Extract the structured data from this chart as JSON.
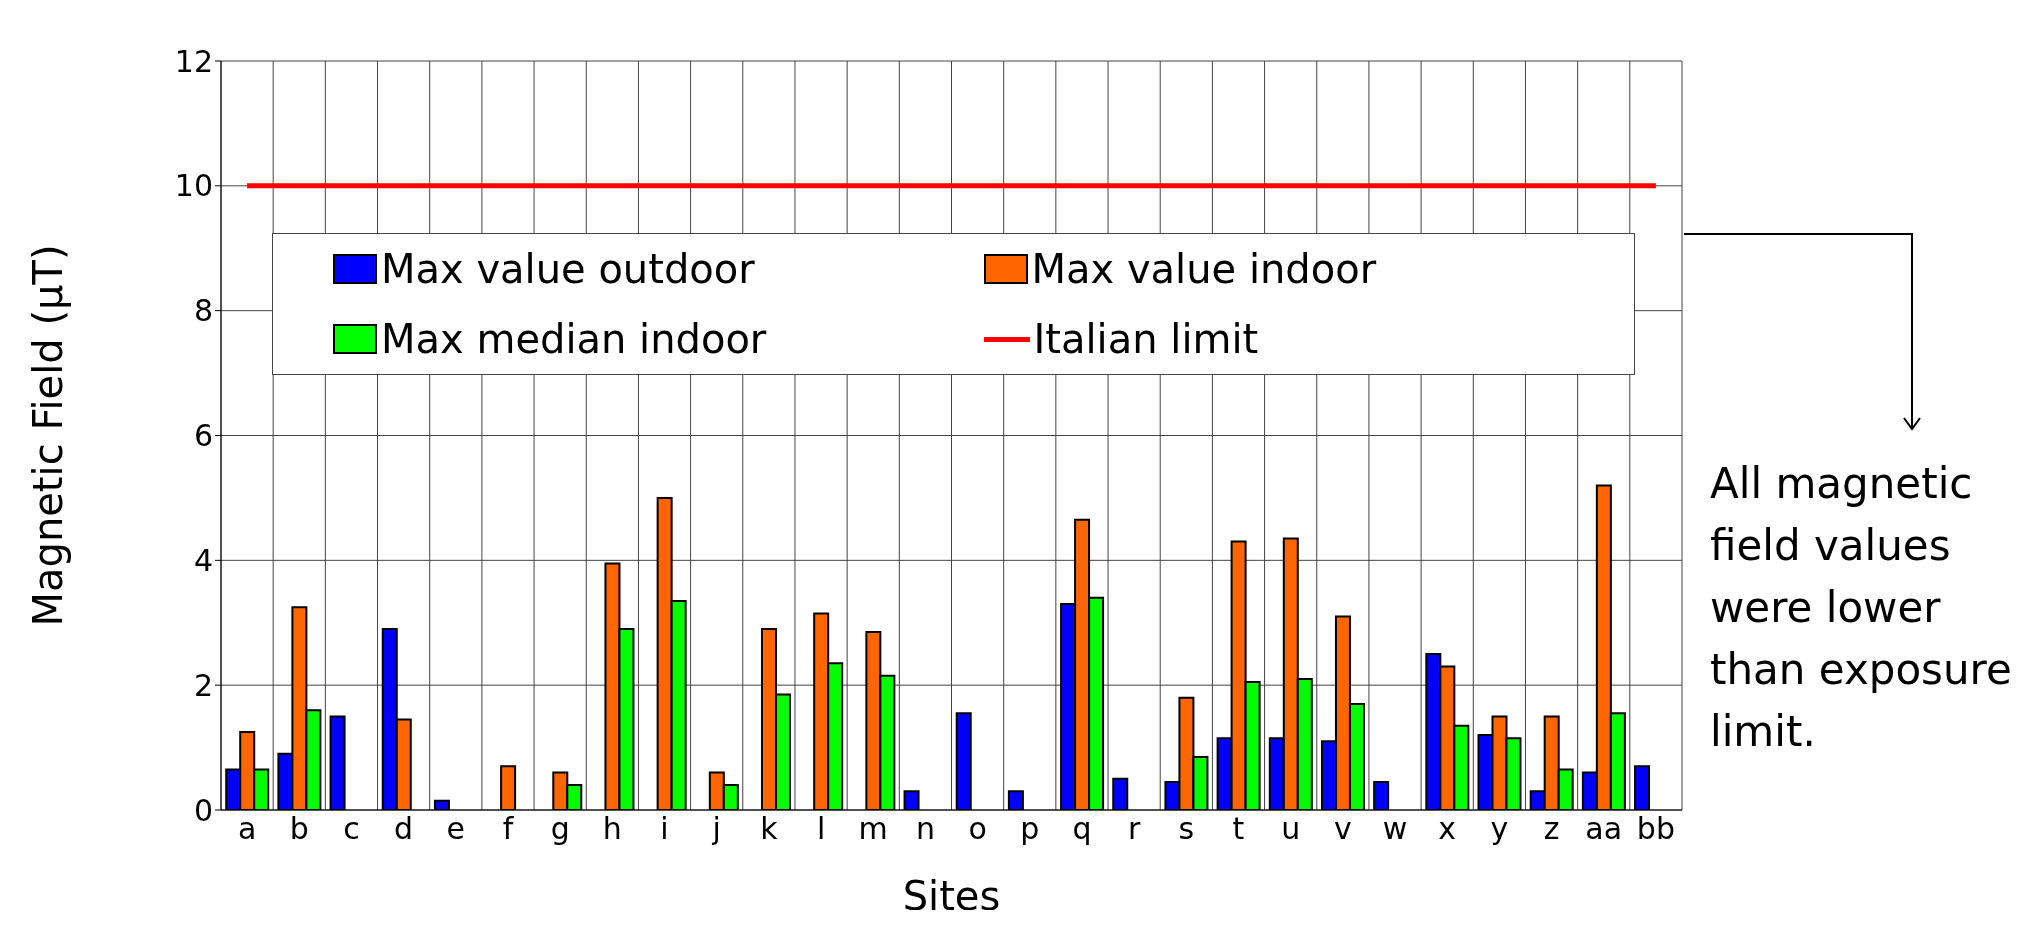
{
  "chart_data": {
    "type": "bar",
    "xlabel": "Sites",
    "ylabel": "Magnetic Field (µT)",
    "categories": [
      "a",
      "b",
      "c",
      "d",
      "e",
      "f",
      "g",
      "h",
      "i",
      "j",
      "k",
      "l",
      "m",
      "n",
      "o",
      "p",
      "q",
      "r",
      "s",
      "t",
      "u",
      "v",
      "w",
      "x",
      "y",
      "z",
      "aa",
      "bb"
    ],
    "series": [
      {
        "name": "Max value outdoor",
        "color": "#0000ff",
        "values": [
          0.65,
          0.9,
          1.5,
          2.9,
          0.15,
          null,
          null,
          null,
          null,
          null,
          null,
          null,
          null,
          0.3,
          1.55,
          0.3,
          3.3,
          0.5,
          0.45,
          1.15,
          1.15,
          1.1,
          0.45,
          2.5,
          1.2,
          0.3,
          0.6,
          0.7
        ]
      },
      {
        "name": "Max value indoor",
        "color": "#ff6600",
        "values": [
          1.25,
          3.25,
          null,
          1.45,
          null,
          0.7,
          0.6,
          3.95,
          5.0,
          0.6,
          2.9,
          3.15,
          2.85,
          null,
          null,
          null,
          4.65,
          null,
          1.8,
          4.3,
          4.35,
          3.1,
          null,
          2.3,
          1.5,
          1.5,
          5.2,
          null
        ]
      },
      {
        "name": "Max median indoor",
        "color": "#00ff00",
        "values": [
          0.65,
          1.6,
          null,
          null,
          null,
          null,
          0.4,
          2.9,
          3.35,
          0.4,
          1.85,
          2.35,
          2.15,
          null,
          null,
          null,
          3.4,
          null,
          0.85,
          2.05,
          2.1,
          1.7,
          null,
          1.35,
          1.15,
          0.65,
          1.55,
          null
        ]
      },
      {
        "name": "Italian limit",
        "type": "line",
        "color": "#ff0000",
        "values": [
          10,
          10,
          10,
          10,
          10,
          10,
          10,
          10,
          10,
          10,
          10,
          10,
          10,
          10,
          10,
          10,
          10,
          10,
          10,
          10,
          10,
          10,
          10,
          10,
          10,
          10,
          10,
          10
        ]
      }
    ],
    "ylim": [
      0,
      12
    ],
    "yticks": [
      0,
      2,
      4,
      6,
      8,
      10,
      12
    ],
    "grid": true,
    "legend": "top",
    "annotations": [
      "All magnetic field values were lower than exposure limit."
    ]
  }
}
